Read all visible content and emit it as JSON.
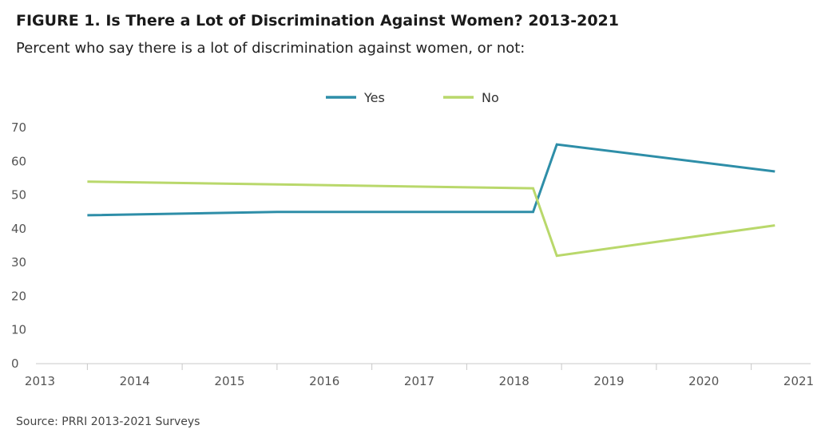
{
  "header": {
    "title": "FIGURE 1.  Is There a Lot of Discrimination Against Women? 2013-2021",
    "subtitle": "Percent who say there is a lot of discrimination against women, or not:"
  },
  "footer": {
    "source": "Source: PRRI 2013-2021 Surveys"
  },
  "chart_data": {
    "type": "line",
    "title": "FIGURE 1.  Is There a Lot of Discrimination Against Women? 2013-2021",
    "subtitle": "Percent who say there is a lot of discrimination against women, or not:",
    "xlabel": "",
    "ylabel": "",
    "x_ticks": [
      "2013",
      "2014",
      "2015",
      "2016",
      "2017",
      "2018",
      "2019",
      "2020",
      "2021"
    ],
    "y_ticks": [
      0,
      10,
      20,
      30,
      40,
      50,
      60,
      70
    ],
    "ylim": [
      0,
      70
    ],
    "xlim": [
      2013,
      2021
    ],
    "grid": false,
    "legend_position": "top-center",
    "series": [
      {
        "name": "Yes",
        "color": "#2e8ea8",
        "points": [
          [
            2013.5,
            44
          ],
          [
            2015.5,
            45
          ],
          [
            2018.2,
            45
          ],
          [
            2018.45,
            65
          ],
          [
            2020.75,
            57
          ]
        ]
      },
      {
        "name": "No",
        "color": "#b9d86b",
        "points": [
          [
            2013.5,
            54
          ],
          [
            2018.2,
            52
          ],
          [
            2018.45,
            32
          ],
          [
            2020.75,
            41
          ]
        ]
      }
    ]
  }
}
